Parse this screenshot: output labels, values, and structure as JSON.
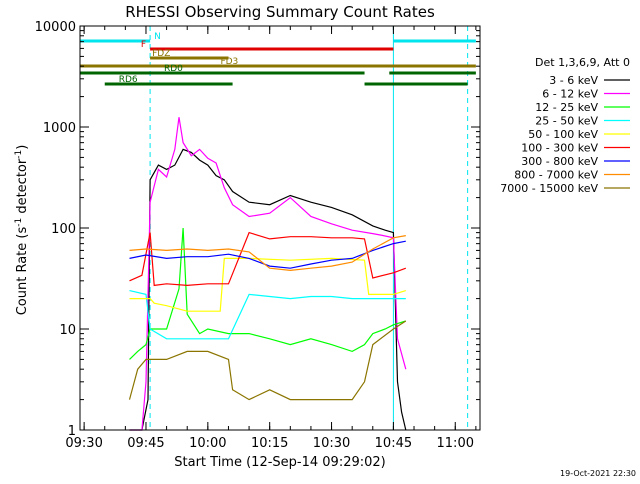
{
  "chart_data": {
    "type": "line",
    "title": "RHESSI Observing Summary Count Rates",
    "xlabel": "Start Time (12-Sep-14 09:29:02)",
    "ylabel": "Count Rate (s",
    "ylabel_sup": "-1",
    "ylabel_tail": " detector",
    "ylabel_tail_sup": "-1",
    "ylabel_close": ")",
    "timestamp": "19-Oct-2021 22:30",
    "xlim": [
      "09:29",
      "11:06"
    ],
    "x_ticks": [
      "09:30",
      "09:45",
      "10:00",
      "10:15",
      "10:30",
      "10:45",
      "11:00"
    ],
    "ylim": [
      1,
      10000
    ],
    "yscale": "log",
    "y_ticks": [
      "1",
      "10",
      "100",
      "1000",
      "10000"
    ],
    "grid": false,
    "legend_position": "right",
    "legend_title": "Det 1,3,6,9, Att 0",
    "vlines": [
      {
        "time": "09:46",
        "color": "#00e5ee",
        "style": "dashed"
      },
      {
        "time": "10:45",
        "color": "#00e5ee",
        "style": "solid"
      },
      {
        "time": "11:03",
        "color": "#00e5ee",
        "style": "dashed"
      }
    ],
    "flags": [
      {
        "label": "N",
        "color": "#00e5ee",
        "segments": [
          [
            "09:29",
            "09:46"
          ],
          [
            "10:45",
            "11:05"
          ]
        ]
      },
      {
        "label": "F",
        "color": "#e00000",
        "segments": [
          [
            "09:46",
            "10:45"
          ]
        ]
      },
      {
        "label": "FDZ",
        "color": "#8b7500",
        "segments": [
          [
            "09:46",
            "10:05"
          ]
        ]
      },
      {
        "label": "FD3",
        "color": "#8b7500",
        "segments": [
          [
            "09:29",
            "11:05"
          ]
        ]
      },
      {
        "label": "RD0",
        "color": "#006400",
        "segments": [
          [
            "09:29",
            "10:38"
          ],
          [
            "10:44",
            "11:05"
          ]
        ]
      },
      {
        "label": "RD6",
        "color": "#006400",
        "segments": [
          [
            "09:35",
            "10:06"
          ],
          [
            "10:38",
            "11:03"
          ]
        ]
      }
    ],
    "series": [
      {
        "name": "3 - 6 keV",
        "color": "#000000",
        "x": [
          "09:41",
          "09:44",
          "09:45:30",
          "09:46",
          "09:48",
          "09:50",
          "09:52",
          "09:54",
          "09:56",
          "09:58",
          "10:00",
          "10:02",
          "10:04",
          "10:06",
          "10:10",
          "10:15",
          "10:20",
          "10:25",
          "10:30",
          "10:35",
          "10:40",
          "10:43",
          "10:45",
          "10:46",
          "10:47",
          "10:48"
        ],
        "y": [
          1,
          1,
          2,
          300,
          420,
          380,
          420,
          600,
          560,
          470,
          420,
          330,
          300,
          230,
          180,
          170,
          210,
          180,
          160,
          135,
          105,
          95,
          90,
          3,
          1.5,
          1
        ]
      },
      {
        "name": "6 - 12 keV",
        "color": "#ff00ff",
        "x": [
          "09:41",
          "09:44",
          "09:45",
          "09:46",
          "09:48",
          "09:50",
          "09:52",
          "09:53",
          "09:54",
          "09:56",
          "09:58",
          "10:00",
          "10:02",
          "10:04",
          "10:06",
          "10:10",
          "10:15",
          "10:20",
          "10:25",
          "10:30",
          "10:35",
          "10:40",
          "10:42",
          "10:45",
          "10:46",
          "10:48"
        ],
        "y": [
          1,
          1,
          3,
          180,
          380,
          320,
          600,
          1250,
          700,
          520,
          600,
          490,
          440,
          250,
          170,
          130,
          140,
          200,
          130,
          110,
          95,
          88,
          85,
          80,
          8,
          4
        ]
      },
      {
        "name": "12 - 25 keV",
        "color": "#00ff00",
        "x": [
          "09:41",
          "09:43",
          "09:45",
          "09:46",
          "09:50",
          "09:53",
          "09:54",
          "09:55",
          "09:58",
          "10:00",
          "10:05",
          "10:10",
          "10:15",
          "10:20",
          "10:25",
          "10:30",
          "10:35",
          "10:38",
          "10:40",
          "10:43",
          "10:45",
          "10:48"
        ],
        "y": [
          5,
          6,
          7,
          10,
          10,
          25,
          100,
          14,
          9,
          10,
          9,
          9,
          8,
          7,
          8,
          7,
          6,
          7,
          9,
          10,
          11,
          12
        ]
      },
      {
        "name": "25 - 50 keV",
        "color": "#00ffff",
        "x": [
          "09:41",
          "09:45",
          "09:46",
          "09:50",
          "09:55",
          "10:00",
          "10:05",
          "10:10",
          "10:15",
          "10:20",
          "10:25",
          "10:30",
          "10:35",
          "10:40",
          "10:45",
          "10:48"
        ],
        "y": [
          24,
          22,
          10,
          8,
          8,
          8,
          8,
          22,
          21,
          20,
          21,
          21,
          20,
          20,
          20,
          20
        ]
      },
      {
        "name": "50 - 100 keV",
        "color": "#ffff00",
        "x": [
          "09:41",
          "09:46",
          "09:47",
          "09:50",
          "09:55",
          "10:00",
          "10:03",
          "10:04",
          "10:10",
          "10:20",
          "10:30",
          "10:38",
          "10:39",
          "10:45",
          "10:48"
        ],
        "y": [
          20,
          20,
          18,
          17,
          15,
          15,
          15,
          50,
          50,
          48,
          50,
          48,
          22,
          22,
          24
        ]
      },
      {
        "name": "100 - 300 keV",
        "color": "#ff0000",
        "x": [
          "09:41",
          "09:44",
          "09:46",
          "09:47",
          "09:50",
          "09:55",
          "10:00",
          "10:05",
          "10:10",
          "10:15",
          "10:20",
          "10:25",
          "10:30",
          "10:35",
          "10:38",
          "10:40",
          "10:45",
          "10:48"
        ],
        "y": [
          30,
          34,
          90,
          27,
          28,
          27,
          28,
          28,
          90,
          78,
          82,
          82,
          80,
          80,
          78,
          32,
          36,
          40
        ]
      },
      {
        "name": "300 - 800 keV",
        "color": "#0000ff",
        "x": [
          "09:41",
          "09:45",
          "09:50",
          "09:55",
          "10:00",
          "10:05",
          "10:10",
          "10:15",
          "10:20",
          "10:25",
          "10:30",
          "10:35",
          "10:40",
          "10:45",
          "10:48"
        ],
        "y": [
          50,
          54,
          50,
          52,
          52,
          55,
          50,
          42,
          40,
          44,
          48,
          50,
          60,
          70,
          74
        ]
      },
      {
        "name": "800 - 7000 keV",
        "color": "#ff8c00",
        "x": [
          "09:41",
          "09:45",
          "09:50",
          "09:55",
          "10:00",
          "10:05",
          "10:10",
          "10:15",
          "10:20",
          "10:25",
          "10:30",
          "10:35",
          "10:40",
          "10:45",
          "10:48"
        ],
        "y": [
          60,
          62,
          60,
          62,
          60,
          62,
          58,
          40,
          38,
          40,
          42,
          46,
          62,
          80,
          84
        ]
      },
      {
        "name": "7000 - 15000 keV",
        "color": "#8b7500",
        "x": [
          "09:41",
          "09:43",
          "09:45",
          "09:50",
          "09:55",
          "10:00",
          "10:05",
          "10:06",
          "10:10",
          "10:15",
          "10:20",
          "10:25",
          "10:30",
          "10:35",
          "10:38",
          "10:40",
          "10:45",
          "10:48"
        ],
        "y": [
          2,
          4,
          5,
          5,
          6,
          6,
          5,
          2.5,
          2,
          2.5,
          2,
          2,
          2,
          2,
          3,
          7,
          10,
          12
        ]
      }
    ]
  }
}
